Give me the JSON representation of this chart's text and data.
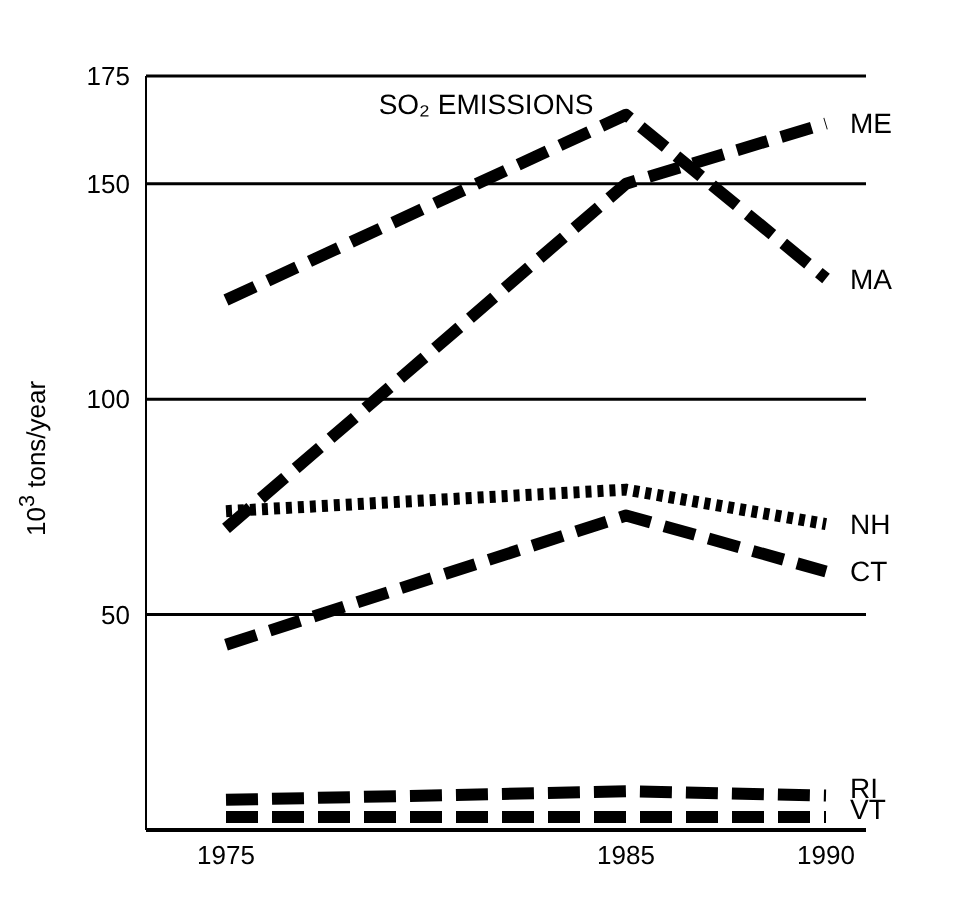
{
  "chart_data": {
    "type": "line",
    "title": "SO₂ EMISSIONS",
    "ylabel": "10$^{3}$ tons/year",
    "x": [
      1975,
      1985,
      1990
    ],
    "xlim": [
      1973,
      1991
    ],
    "xticks": [
      1975,
      1985,
      1990
    ],
    "ylim": [
      0,
      175
    ],
    "yticks": [
      {
        "value": 0,
        "label": null
      },
      50,
      100,
      150,
      175
    ],
    "grid": "y",
    "marker": "none",
    "series": [
      {
        "name": "ME",
        "color": "#000000",
        "line_style": "dashed",
        "values": [
          70,
          150,
          164
        ]
      },
      {
        "name": "MA",
        "color": "#000000",
        "line_style": "dashed",
        "values": [
          123,
          166,
          128
        ]
      },
      {
        "name": "NH",
        "color": "#000000",
        "line_style": "dotted",
        "values": [
          74,
          79,
          71
        ]
      },
      {
        "name": "CT",
        "color": "#000000",
        "line_style": "dashed",
        "values": [
          43,
          73,
          60
        ]
      },
      {
        "name": "RI",
        "color": "#000000",
        "line_style": "dashed",
        "values": [
          7,
          9,
          8
        ]
      },
      {
        "name": "VT",
        "color": "#000000",
        "line_style": "dashed",
        "values": [
          3,
          3,
          3
        ]
      }
    ]
  }
}
